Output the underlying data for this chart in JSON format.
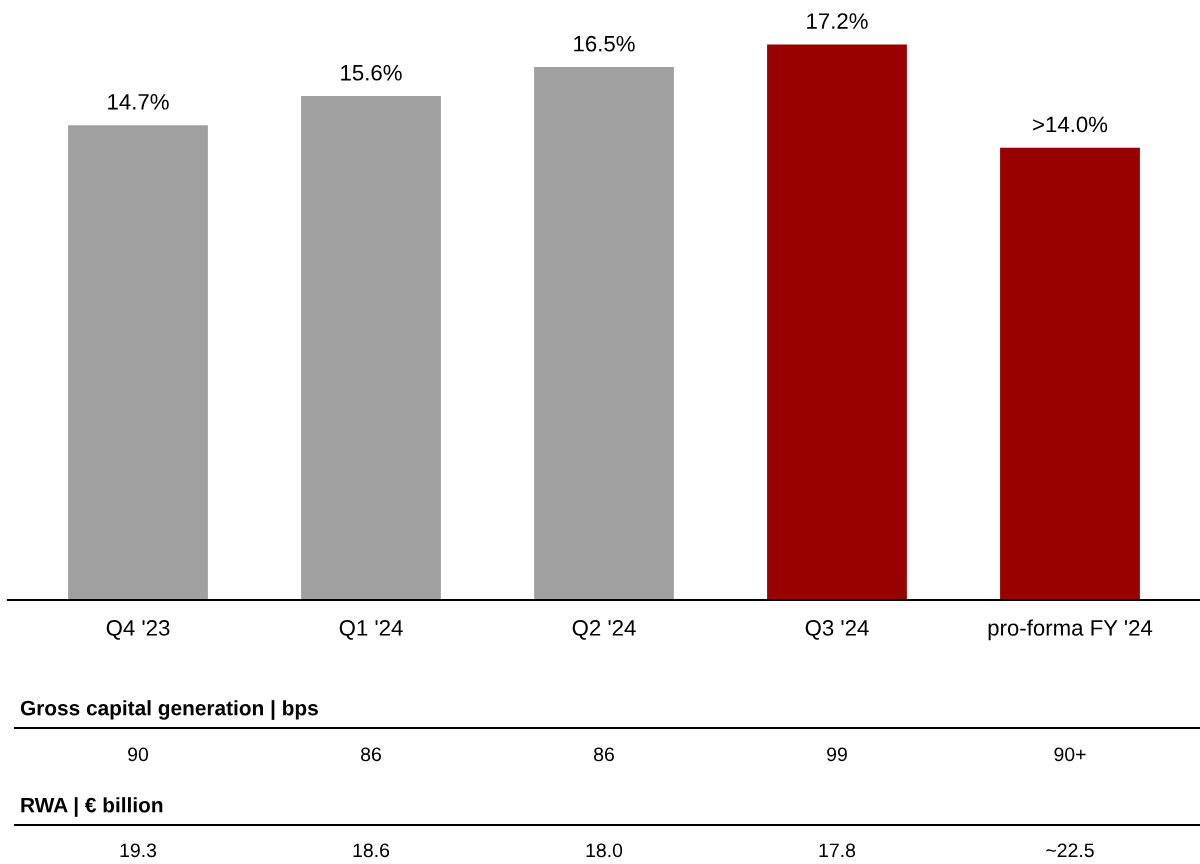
{
  "chart_data": {
    "type": "bar",
    "categories": [
      "Q4 '23",
      "Q1 '24",
      "Q2 '24",
      "Q3 '24",
      "pro-forma FY '24"
    ],
    "values": [
      14.7,
      15.6,
      16.5,
      17.2,
      14.0
    ],
    "colors": [
      "#a0a0a0",
      "#a0a0a0",
      "#a0a0a0",
      "#990000",
      "#990000"
    ],
    "value_labels": [
      "14.7%",
      "15.6%",
      "16.5%",
      "17.2%",
      ">14.0%"
    ],
    "annotations": [
      "Gross capital generation | bps",
      "90",
      "86",
      "86",
      "99",
      "90+",
      "RWA | € billion",
      "19.3",
      "18.6",
      "18.0",
      "17.8",
      "~22.5"
    ]
  }
}
